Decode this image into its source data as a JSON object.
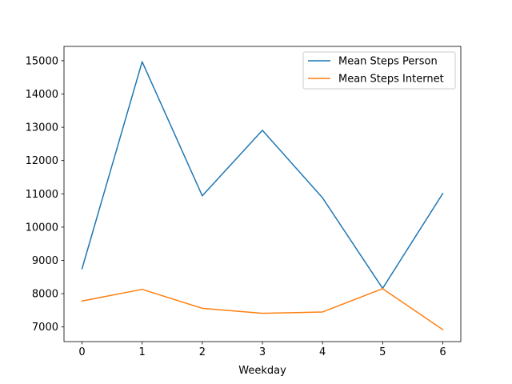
{
  "chart_data": {
    "type": "line",
    "title": "",
    "xlabel": "Weekday",
    "ylabel": "",
    "x": [
      0,
      1,
      2,
      3,
      4,
      5,
      6
    ],
    "xlim": [
      -0.3,
      6.3
    ],
    "ylim": [
      6560,
      15430
    ],
    "xticks": [
      0,
      1,
      2,
      3,
      4,
      5,
      6
    ],
    "yticks": [
      7000,
      8000,
      9000,
      10000,
      11000,
      12000,
      13000,
      14000,
      15000
    ],
    "grid": false,
    "legend_position": "top-right",
    "series": [
      {
        "name": "Mean Steps Person",
        "color": "#1f77b4",
        "values": [
          8750,
          14970,
          10940,
          12910,
          10880,
          8160,
          11010
        ]
      },
      {
        "name": "Mean Steps Internet",
        "color": "#ff7f0e",
        "values": [
          7780,
          8130,
          7560,
          7410,
          7450,
          8150,
          6920
        ]
      }
    ]
  }
}
